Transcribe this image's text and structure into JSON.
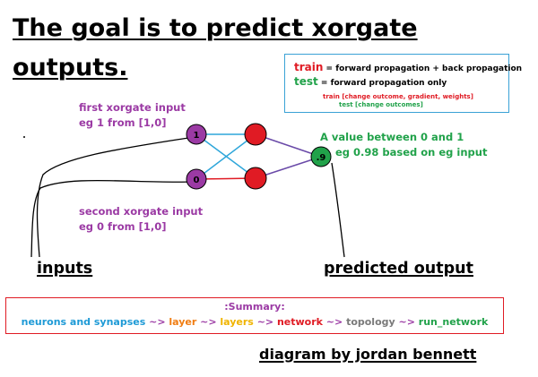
{
  "title": {
    "line1": "The goal is to predict xorgate",
    "line2": "outputs."
  },
  "legend": {
    "train_key": "train",
    "train_desc": " = forward propagation + back propagation",
    "test_key": "test",
    "test_desc": " = forward propagation only",
    "train_note": "train [change outcome, gradient, weights]",
    "test_note": "test [change outcomes]"
  },
  "first_input": {
    "line1": "first xorgate input",
    "line2": "eg 1 from [1,0]"
  },
  "second_input": {
    "line1": "second xorgate input",
    "line2": "eg 0 from [1,0]"
  },
  "output_note": {
    "line1": "A value between 0 and 1",
    "line2": "eg 0.98 based on eg input"
  },
  "network": {
    "input1_value": "1",
    "input2_value": "0",
    "output_value": ".9"
  },
  "labels": {
    "inputs": "inputs",
    "predicted_output": "predicted output"
  },
  "summary": {
    "title": ":Summary:",
    "items": [
      {
        "text": "neurons and synapses",
        "color": "#1e9ad6"
      },
      {
        "text": " ~> ",
        "color": "#9b3aa4"
      },
      {
        "text": "layer",
        "color": "#f07d12"
      },
      {
        "text": " ~> ",
        "color": "#9b3aa4"
      },
      {
        "text": "layers",
        "color": "#f0b400"
      },
      {
        "text": " ~> ",
        "color": "#9b3aa4"
      },
      {
        "text": "network",
        "color": "#e01b24"
      },
      {
        "text": " ~> ",
        "color": "#9b3aa4"
      },
      {
        "text": "topology",
        "color": "#7a7a7a"
      },
      {
        "text": " ~> ",
        "color": "#9b3aa4"
      },
      {
        "text": "run_network",
        "color": "#21a24a"
      }
    ]
  },
  "credit": "diagram by jordan bennett",
  "colors": {
    "input_node": "#9b3aa4",
    "hidden_node": "#e01b24",
    "output_node": "#21a24a",
    "edge_blue": "#2ea6da",
    "edge_red": "#e01b24",
    "edge_purple": "#6a4aa8"
  }
}
